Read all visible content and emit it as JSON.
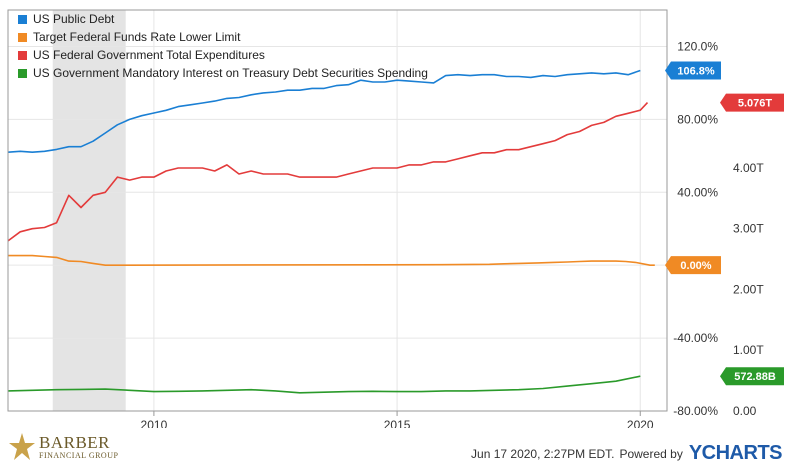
{
  "legend": [
    {
      "label": "US Public Debt",
      "color": "#1a7fd4"
    },
    {
      "label": "Target Federal Funds Rate Lower Limit",
      "color": "#f08a24"
    },
    {
      "label": "US Federal Government Total Expenditures",
      "color": "#e33b3b"
    },
    {
      "label": "US Government Mandatory Interest on Treasury Debt Securities Spending",
      "color": "#2a9a2a"
    }
  ],
  "footer": {
    "timestamp": "Jun 17 2020, 2:27PM EDT.",
    "powered_by": "Powered by",
    "brand": "YCHARTS",
    "logo_main": "BARBER",
    "logo_sub": "FINANCIAL GROUP"
  },
  "chart_data": {
    "type": "line",
    "x_ticks": [
      "2010",
      "2015",
      "2020"
    ],
    "left_axis_ticks": [
      "120.0%",
      "80.00%",
      "40.00%",
      "0.00%",
      "-40.00%",
      "-80.00%"
    ],
    "right_axis_ticks": [
      "4.00T",
      "3.00T",
      "2.00T",
      "1.00T",
      "0.00"
    ],
    "left_ylim": [
      -80,
      140
    ],
    "right_ylim": [
      0,
      6.6
    ],
    "recession_shading": [
      2007.92,
      2009.42
    ],
    "grid": true,
    "legend_position": "top-left",
    "series": [
      {
        "name": "US Public Debt",
        "axis": "left",
        "color": "#1a7fd4",
        "end_label": "106.8%",
        "x": [
          2007.0,
          2007.25,
          2007.5,
          2007.75,
          2008.0,
          2008.25,
          2008.5,
          2008.75,
          2009.0,
          2009.25,
          2009.5,
          2009.75,
          2010.0,
          2010.25,
          2010.5,
          2010.75,
          2011.0,
          2011.25,
          2011.5,
          2011.75,
          2012.0,
          2012.25,
          2012.5,
          2012.75,
          2013.0,
          2013.25,
          2013.5,
          2013.75,
          2014.0,
          2014.25,
          2014.5,
          2014.75,
          2015.0,
          2015.25,
          2015.5,
          2015.75,
          2016.0,
          2016.25,
          2016.5,
          2016.75,
          2017.0,
          2017.25,
          2017.5,
          2017.75,
          2018.0,
          2018.25,
          2018.5,
          2018.75,
          2019.0,
          2019.25,
          2019.5,
          2019.75,
          2020.0
        ],
        "values": [
          62,
          62.5,
          62,
          62.5,
          63.5,
          65,
          65,
          68,
          72.5,
          77,
          80,
          82,
          83.5,
          85,
          87,
          88,
          89,
          90,
          91.5,
          92,
          93.5,
          94.5,
          95,
          96,
          96,
          97,
          97,
          98.5,
          99,
          101.5,
          100.5,
          100.5,
          101.5,
          101,
          100.5,
          100,
          104,
          104.5,
          104,
          104.5,
          104.5,
          103.5,
          103.5,
          103,
          104,
          103.5,
          104.5,
          105,
          105.5,
          105,
          105.5,
          104.5,
          106.8
        ]
      },
      {
        "name": "Target Federal Funds Rate Lower Limit",
        "axis": "left",
        "color": "#f08a24",
        "end_label": "0.00%",
        "x": [
          2007.0,
          2007.5,
          2007.75,
          2008.0,
          2008.25,
          2008.5,
          2008.75,
          2009.0,
          2015.9,
          2016.9,
          2017.2,
          2017.5,
          2017.9,
          2018.2,
          2018.5,
          2018.75,
          2019.0,
          2019.5,
          2019.7,
          2019.9,
          2020.2,
          2020.3
        ],
        "values": [
          5.25,
          5.25,
          4.75,
          4.25,
          2.25,
          2.0,
          1.0,
          0,
          0.25,
          0.5,
          0.75,
          1.0,
          1.25,
          1.5,
          1.75,
          2.0,
          2.25,
          2.25,
          2.0,
          1.5,
          0,
          0
        ]
      },
      {
        "name": "US Federal Government Total Expenditures",
        "axis": "right",
        "color": "#e33b3b",
        "end_label": "5.076T",
        "x": [
          2007.0,
          2007.25,
          2007.5,
          2007.75,
          2008.0,
          2008.25,
          2008.5,
          2008.75,
          2009.0,
          2009.25,
          2009.5,
          2009.75,
          2010.0,
          2010.25,
          2010.5,
          2010.75,
          2011.0,
          2011.25,
          2011.5,
          2011.75,
          2012.0,
          2012.25,
          2012.5,
          2012.75,
          2013.0,
          2013.25,
          2013.5,
          2013.75,
          2014.0,
          2014.25,
          2014.5,
          2014.75,
          2015.0,
          2015.25,
          2015.5,
          2015.75,
          2016.0,
          2016.25,
          2016.5,
          2016.75,
          2017.0,
          2017.25,
          2017.5,
          2017.75,
          2018.0,
          2018.25,
          2018.5,
          2018.75,
          2019.0,
          2019.25,
          2019.5,
          2019.75,
          2020.0,
          2020.15
        ],
        "values": [
          2.8,
          2.95,
          3.0,
          3.02,
          3.1,
          3.55,
          3.35,
          3.55,
          3.6,
          3.85,
          3.8,
          3.85,
          3.85,
          3.95,
          4.0,
          4.0,
          4.0,
          3.95,
          4.05,
          3.9,
          3.95,
          3.9,
          3.9,
          3.9,
          3.85,
          3.85,
          3.85,
          3.85,
          3.9,
          3.95,
          4.0,
          4.0,
          4.0,
          4.05,
          4.05,
          4.1,
          4.1,
          4.15,
          4.2,
          4.25,
          4.25,
          4.3,
          4.3,
          4.35,
          4.4,
          4.45,
          4.55,
          4.6,
          4.7,
          4.75,
          4.85,
          4.9,
          4.95,
          5.076
        ]
      },
      {
        "name": "US Government Mandatory Interest on Treasury Debt Securities Spending",
        "axis": "right",
        "color": "#2a9a2a",
        "end_label": "572.88B",
        "x": [
          2007.0,
          2007.5,
          2008.0,
          2008.5,
          2009.0,
          2009.5,
          2010.0,
          2010.5,
          2011.0,
          2011.5,
          2012.0,
          2012.5,
          2013.0,
          2013.5,
          2014.0,
          2014.5,
          2015.0,
          2015.5,
          2016.0,
          2016.5,
          2017.0,
          2017.5,
          2018.0,
          2018.5,
          2019.0,
          2019.5,
          2020.0
        ],
        "values": [
          0.33,
          0.34,
          0.35,
          0.355,
          0.36,
          0.34,
          0.32,
          0.325,
          0.33,
          0.34,
          0.35,
          0.33,
          0.3,
          0.31,
          0.32,
          0.325,
          0.32,
          0.32,
          0.33,
          0.33,
          0.34,
          0.35,
          0.37,
          0.41,
          0.45,
          0.49,
          0.5729
        ]
      }
    ]
  }
}
